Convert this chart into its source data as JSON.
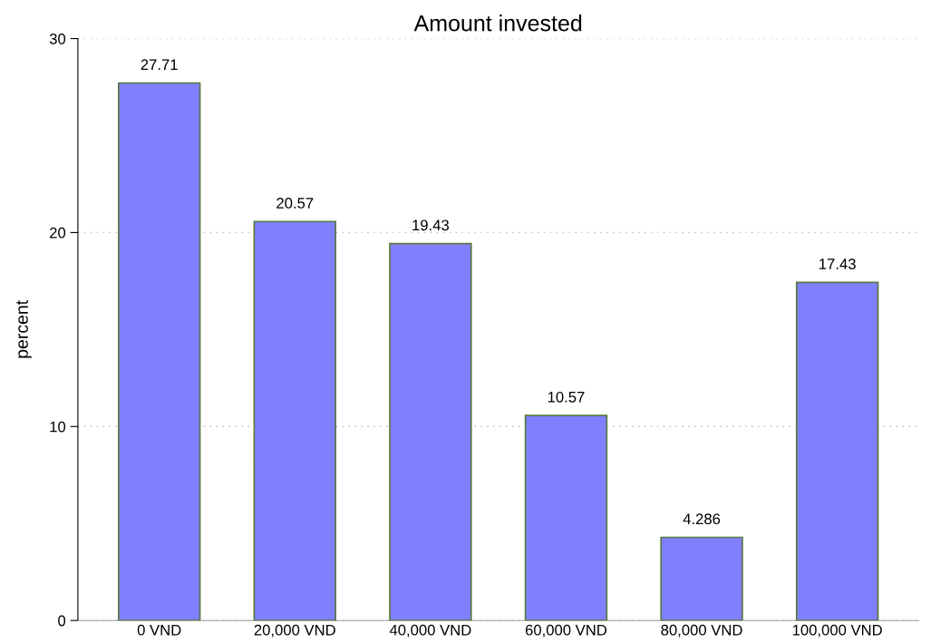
{
  "chart_data": {
    "type": "bar",
    "title": "Amount invested",
    "ylabel": "percent",
    "categories": [
      "0 VND",
      "20,000 VND",
      "40,000 VND",
      "60,000 VND",
      "80,000 VND",
      "100,000 VND"
    ],
    "values": [
      27.71,
      20.57,
      19.43,
      10.57,
      4.286,
      17.43
    ],
    "color": "#8080ff",
    "ylim": [
      0,
      30
    ],
    "yticks": [
      0,
      10,
      20,
      30
    ],
    "grid": "y",
    "data_labels": true
  }
}
